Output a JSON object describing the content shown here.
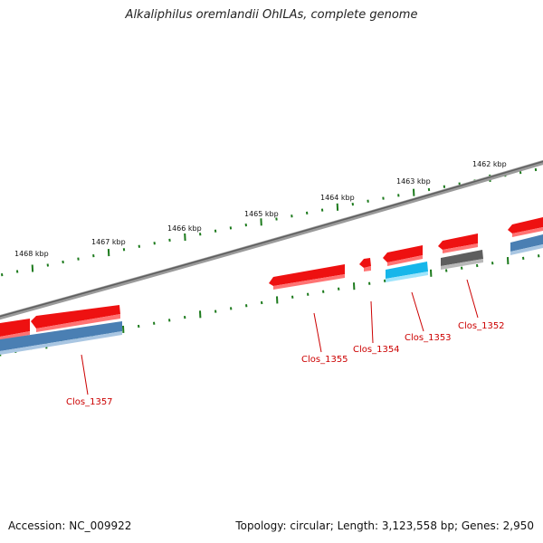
{
  "title": "Alkaliphilus oremlandii OhILAs, complete genome",
  "footer": {
    "accession": "Accession: NC_009922",
    "summary": "Topology: circular; Length: 3,123,558 bp; Genes: 2,950"
  },
  "colors": {
    "backbone": "#7b7b7b",
    "ticks": "#1c7a1c",
    "gene_red": "#ee1111",
    "gene_red_light": "#ff6a6a",
    "gene_blue": "#4a7fb3",
    "gene_cyan": "#16b6ea",
    "gene_gray": "#5e5e5e",
    "label": "#cc0000"
  },
  "ruler": {
    "labels": [
      "1468 kbp",
      "1467 kbp",
      "1466 kbp",
      "1465 kbp",
      "1464 kbp",
      "1463 kbp",
      "1462 kbp"
    ]
  },
  "gene_labels": [
    "Clos_1357",
    "Clos_1355",
    "Clos_1354",
    "Clos_1353",
    "Clos_1352"
  ]
}
